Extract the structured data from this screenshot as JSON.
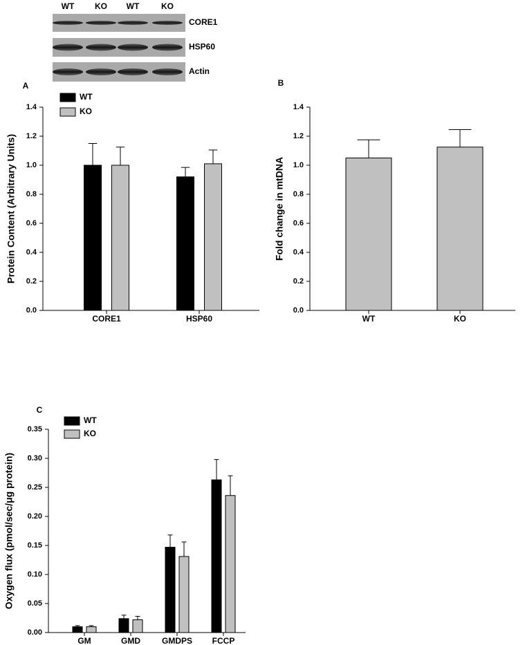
{
  "blot": {
    "lanes": [
      "WT",
      "KO",
      "WT",
      "KO"
    ],
    "rows": [
      "CORE1",
      "HSP60",
      "Actin"
    ]
  },
  "chart_data": [
    {
      "type": "bar",
      "panel_label": "A",
      "y_label": "Protein Content (Arbitrary Units)",
      "categories": [
        "CORE1",
        "HSP60"
      ],
      "series": [
        {
          "name": "WT",
          "color": "#000000",
          "values": [
            1.0,
            0.92
          ],
          "errors": [
            0.15,
            0.065
          ]
        },
        {
          "name": "KO",
          "color": "#c0c0c0",
          "values": [
            1.0,
            1.01
          ],
          "errors": [
            0.125,
            0.095
          ]
        }
      ],
      "ylim": [
        0,
        1.4
      ],
      "yticks": [
        {
          "value": 0,
          "label": "0.0"
        },
        {
          "value": 0.2,
          "label": "0.2"
        },
        {
          "value": 0.4,
          "label": "0.4"
        },
        {
          "value": 0.6,
          "label": "0.6"
        },
        {
          "value": 0.8,
          "label": "0.8"
        },
        {
          "value": 1.0,
          "label": "1.0"
        },
        {
          "value": 1.2,
          "label": "1.2"
        },
        {
          "value": 1.4,
          "label": "1.4"
        }
      ],
      "legend": "upper left"
    },
    {
      "type": "bar",
      "panel_label": "B",
      "y_label": "Fold change in mtDNA",
      "categories": [
        "WT",
        "KO"
      ],
      "color": "#c0c0c0",
      "values": [
        1.05,
        1.125
      ],
      "errors": [
        0.125,
        0.12
      ],
      "ylim": [
        0,
        1.4
      ],
      "yticks": [
        {
          "value": 0,
          "label": "0.0"
        },
        {
          "value": 0.2,
          "label": "0.2"
        },
        {
          "value": 0.4,
          "label": "0.4"
        },
        {
          "value": 0.6,
          "label": "0.6"
        },
        {
          "value": 0.8,
          "label": "0.8"
        },
        {
          "value": 1.0,
          "label": "1.0"
        },
        {
          "value": 1.2,
          "label": "1.2"
        },
        {
          "value": 1.4,
          "label": "1.4"
        }
      ]
    },
    {
      "type": "bar",
      "panel_label": "C",
      "y_label": "Oxygen flux (pmol/sec/μg protein)",
      "categories": [
        "GM",
        "GMD",
        "GMDPS",
        "FCCP"
      ],
      "series": [
        {
          "name": "WT",
          "color": "#000000",
          "values": [
            0.01,
            0.024,
            0.147,
            0.263
          ],
          "errors": [
            0.002,
            0.006,
            0.021,
            0.035
          ]
        },
        {
          "name": "KO",
          "color": "#c0c0c0",
          "values": [
            0.01,
            0.022,
            0.131,
            0.236
          ],
          "errors": [
            0.002,
            0.006,
            0.025,
            0.034
          ]
        }
      ],
      "ylim": [
        0,
        0.35
      ],
      "yticks": [
        {
          "value": 0,
          "label": "0.00"
        },
        {
          "value": 0.05,
          "label": "0.05"
        },
        {
          "value": 0.1,
          "label": "0.10"
        },
        {
          "value": 0.15,
          "label": "0.15"
        },
        {
          "value": 0.2,
          "label": "0.20"
        },
        {
          "value": 0.25,
          "label": "0.25"
        },
        {
          "value": 0.3,
          "label": "0.30"
        },
        {
          "value": 0.35,
          "label": "0.35"
        }
      ],
      "legend": "upper left"
    }
  ]
}
